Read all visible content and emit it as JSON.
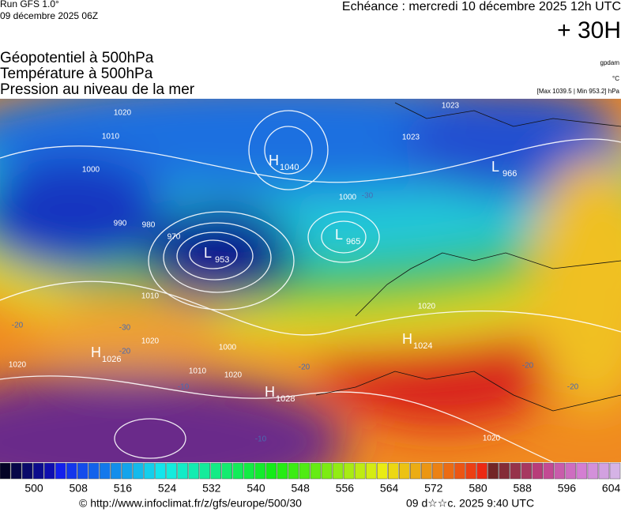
{
  "header": {
    "run": "Run GFS 1.0°",
    "date": "09 décembre 2025 06Z",
    "echeance": "Echéance : mercredi 10 décembre 2025 12h UTC",
    "lead": "+ 30H"
  },
  "titles": [
    "Géopotentiel à 500hPa",
    "Température à 500hPa",
    "Pression au niveau de la mer"
  ],
  "units": [
    "gpdam",
    "°C",
    "[Max 1039.5 | Min 953.2] hPa"
  ],
  "centers": [
    {
      "letter": "H",
      "value": "1040"
    },
    {
      "letter": "L",
      "value": "953"
    },
    {
      "letter": "L",
      "value": "965"
    },
    {
      "letter": "H",
      "value": "1024"
    },
    {
      "letter": "H",
      "value": "1026"
    },
    {
      "letter": "H",
      "value": "1028"
    },
    {
      "letter": "L",
      "value": "966"
    }
  ],
  "isobar_labels": [
    "1020",
    "1010",
    "1000",
    "990",
    "980",
    "970",
    "1000",
    "1010",
    "1020",
    "1020",
    "1010",
    "1000",
    "1020",
    "1020",
    "1020",
    "1023",
    "1023"
  ],
  "temperature_labels": [
    "-30",
    "-20",
    "-20",
    "-30",
    "-20",
    "-10",
    "-20",
    "-10",
    "-20"
  ],
  "colorbar": {
    "labels": [
      "500",
      "508",
      "516",
      "524",
      "532",
      "540",
      "548",
      "556",
      "564",
      "572",
      "580",
      "588",
      "596",
      "604"
    ]
  },
  "footer": {
    "url": "© http://www.infoclimat.fr/z/gfs/europe/500/30",
    "stamp": "09 d☆☆c. 2025  9:40 UTC"
  }
}
